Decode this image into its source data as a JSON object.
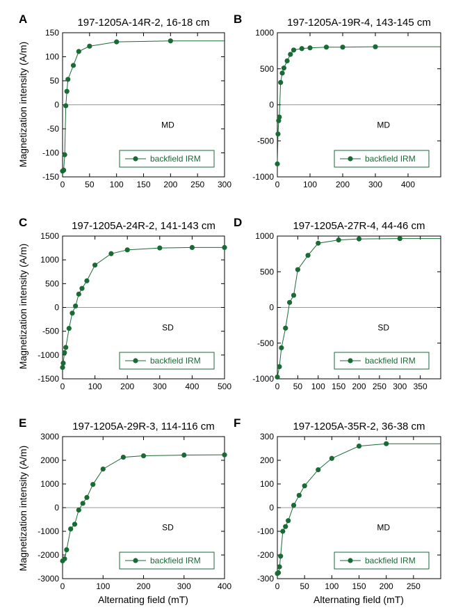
{
  "colors": {
    "series": "#1a6a35",
    "axis": "#000000",
    "zero_line": "#999999"
  },
  "ylabel_shared": "Magnetization intensity (A/m)",
  "xlabel_shared": "Alternating field (mT)",
  "chart_data": [
    {
      "type": "line",
      "panel": "A",
      "title": "197-1205A-14R-2, 16-18 cm",
      "xlim": [
        0,
        300
      ],
      "ylim": [
        -150,
        150
      ],
      "xticks": [
        0,
        50,
        100,
        150,
        200,
        250,
        300
      ],
      "yticks": [
        -150,
        -100,
        -50,
        0,
        50,
        100,
        150
      ],
      "annotation": "MD",
      "legend": "backfield IRM",
      "series": [
        {
          "name": "backfield IRM",
          "x": [
            0,
            2,
            4,
            6,
            8,
            10,
            20,
            30,
            50,
            100,
            200
          ],
          "y": [
            -138,
            -136,
            -104,
            -2,
            28,
            53,
            82,
            111,
            122,
            131,
            133
          ]
        }
      ]
    },
    {
      "type": "line",
      "panel": "B",
      "title": "197-1205A-19R-4, 143-145 cm",
      "xlim": [
        0,
        500
      ],
      "ylim": [
        -1000,
        1000
      ],
      "xticks": [
        0,
        100,
        200,
        300,
        400
      ],
      "yticks": [
        -1000,
        -500,
        0,
        500,
        1000
      ],
      "annotation": "MD",
      "legend": "backfield IRM",
      "series": [
        {
          "name": "backfield IRM",
          "x": [
            0,
            2,
            4,
            6,
            10,
            15,
            20,
            30,
            40,
            50,
            75,
            100,
            150,
            200,
            300
          ],
          "y": [
            -820,
            -405,
            -220,
            -170,
            310,
            440,
            510,
            610,
            700,
            760,
            780,
            790,
            800,
            800,
            805
          ]
        }
      ]
    },
    {
      "type": "line",
      "panel": "C",
      "title": "197-1205A-24R-2, 141-143 cm",
      "xlim": [
        0,
        500
      ],
      "ylim": [
        -1500,
        1500
      ],
      "xticks": [
        0,
        100,
        200,
        300,
        400,
        500
      ],
      "yticks": [
        -1500,
        -1000,
        -500,
        0,
        500,
        1000,
        1500
      ],
      "annotation": "SD",
      "legend": "backfield IRM",
      "series": [
        {
          "name": "backfield IRM",
          "x": [
            0,
            2,
            6,
            10,
            20,
            30,
            40,
            50,
            60,
            75,
            100,
            150,
            200,
            300,
            400,
            500
          ],
          "y": [
            -1260,
            -1170,
            -950,
            -840,
            -440,
            -120,
            30,
            280,
            400,
            560,
            890,
            1130,
            1210,
            1250,
            1260,
            1260
          ]
        }
      ]
    },
    {
      "type": "line",
      "panel": "D",
      "title": "197-1205A-27R-4, 44-46 cm",
      "xlim": [
        0,
        400
      ],
      "ylim": [
        -1000,
        1000
      ],
      "xticks": [
        0,
        50,
        100,
        150,
        200,
        250,
        300,
        350
      ],
      "yticks": [
        -1000,
        -500,
        0,
        500,
        1000
      ],
      "annotation": "SD",
      "legend": "backfield IRM",
      "series": [
        {
          "name": "backfield IRM",
          "x": [
            0,
            5,
            10,
            20,
            30,
            40,
            50,
            75,
            100,
            150,
            200,
            300
          ],
          "y": [
            -975,
            -830,
            -565,
            -290,
            70,
            170,
            530,
            730,
            900,
            945,
            960,
            965
          ]
        }
      ]
    },
    {
      "type": "line",
      "panel": "E",
      "title": "197-1205A-29R-3, 114-116 cm",
      "xlim": [
        0,
        400
      ],
      "ylim": [
        -3000,
        3000
      ],
      "xticks": [
        0,
        100,
        200,
        300,
        400
      ],
      "yticks": [
        -3000,
        -2000,
        -1000,
        0,
        1000,
        2000,
        3000
      ],
      "annotation": "SD",
      "legend": "backfield IRM",
      "series": [
        {
          "name": "backfield IRM",
          "x": [
            0,
            5,
            10,
            20,
            30,
            40,
            50,
            60,
            75,
            100,
            150,
            200,
            300,
            400
          ],
          "y": [
            -2250,
            -2160,
            -1780,
            -900,
            -700,
            -100,
            180,
            430,
            980,
            1630,
            2130,
            2190,
            2220,
            2230
          ]
        }
      ]
    },
    {
      "type": "line",
      "panel": "F",
      "title": "197-1205A-35R-2, 36-38 cm",
      "xlim": [
        0,
        300
      ],
      "ylim": [
        -300,
        300
      ],
      "xticks": [
        0,
        50,
        100,
        150,
        200,
        250
      ],
      "yticks": [
        -300,
        -200,
        -100,
        0,
        100,
        200,
        300
      ],
      "annotation": "MD",
      "legend": "backfield IRM",
      "series": [
        {
          "name": "backfield IRM",
          "x": [
            0,
            2,
            4,
            6,
            10,
            15,
            20,
            30,
            40,
            50,
            75,
            100,
            150,
            200
          ],
          "y": [
            -278,
            -275,
            -250,
            -205,
            -100,
            -80,
            -55,
            10,
            52,
            92,
            160,
            208,
            260,
            270
          ]
        }
      ]
    }
  ]
}
